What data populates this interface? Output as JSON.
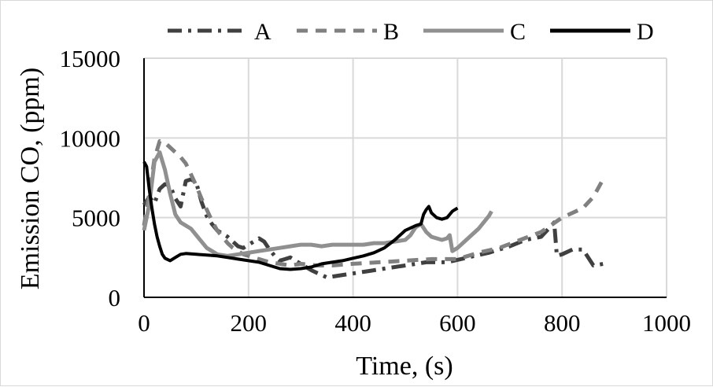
{
  "chart_data": {
    "type": "line",
    "xlabel": "Time, (s)",
    "ylabel": "Emission CO, (ppm)",
    "xlim": [
      0,
      1000
    ],
    "ylim": [
      0,
      15000
    ],
    "xticks": [
      "0",
      "200",
      "400",
      "600",
      "800",
      "1000"
    ],
    "yticks": [
      "0",
      "5000",
      "10000",
      "15000"
    ],
    "grid": true,
    "legend_position": "top",
    "series": [
      {
        "name": "A",
        "color": "#404040",
        "dash": "long-dash-dot",
        "x": [
          0,
          10,
          20,
          30,
          40,
          50,
          60,
          70,
          80,
          90,
          100,
          110,
          120,
          130,
          140,
          150,
          160,
          170,
          180,
          190,
          200,
          210,
          220,
          230,
          240,
          250,
          260,
          270,
          280,
          290,
          300,
          310,
          320,
          330,
          340,
          350,
          360,
          380,
          400,
          430,
          460,
          500,
          540,
          580,
          620,
          660,
          700,
          730,
          760,
          780,
          785,
          790,
          800,
          820,
          840,
          860,
          880
        ],
        "y": [
          5800,
          6300,
          5900,
          6800,
          7100,
          7000,
          6200,
          5700,
          7300,
          7400,
          7200,
          6000,
          5100,
          4600,
          4200,
          4000,
          3800,
          3500,
          3200,
          3100,
          3300,
          3500,
          3700,
          3500,
          3000,
          2600,
          2300,
          2400,
          2500,
          2300,
          2100,
          1900,
          1700,
          1550,
          1400,
          1250,
          1300,
          1400,
          1500,
          1650,
          1800,
          2000,
          2200,
          2200,
          2500,
          2800,
          3200,
          3600,
          3800,
          4500,
          4700,
          2600,
          2700,
          3000,
          3000,
          2000,
          2100
        ]
      },
      {
        "name": "B",
        "color": "#808080",
        "dash": "dashed",
        "x": [
          0,
          10,
          20,
          30,
          40,
          50,
          60,
          70,
          80,
          90,
          100,
          110,
          120,
          130,
          140,
          150,
          160,
          170,
          180,
          190,
          200,
          210,
          220,
          240,
          260,
          280,
          300,
          330,
          360,
          400,
          450,
          500,
          550,
          600,
          640,
          680,
          720,
          760,
          800,
          840,
          860,
          870,
          880
        ],
        "y": [
          4500,
          6500,
          8700,
          9800,
          9700,
          9400,
          9100,
          8800,
          8400,
          7700,
          7000,
          6200,
          5500,
          4800,
          4200,
          3800,
          3400,
          3100,
          2900,
          2700,
          2600,
          2500,
          2400,
          2200,
          2100,
          2000,
          2100,
          2000,
          2000,
          2100,
          2200,
          2300,
          2400,
          2400,
          2800,
          3100,
          3600,
          4100,
          5000,
          5600,
          6300,
          6900,
          7500
        ]
      },
      {
        "name": "C",
        "color": "#909090",
        "dash": "solid",
        "x": [
          0,
          10,
          20,
          30,
          40,
          50,
          60,
          70,
          80,
          90,
          100,
          110,
          120,
          130,
          140,
          160,
          180,
          200,
          220,
          240,
          260,
          280,
          300,
          320,
          340,
          360,
          380,
          400,
          420,
          440,
          460,
          480,
          500,
          510,
          520,
          530,
          540,
          550,
          560,
          570,
          580,
          585,
          590,
          600,
          620,
          640,
          660,
          665
        ],
        "y": [
          4200,
          5800,
          8500,
          9100,
          8000,
          6500,
          5200,
          4700,
          4500,
          4300,
          3900,
          3500,
          3100,
          2900,
          2700,
          2600,
          2700,
          2800,
          2900,
          3000,
          3100,
          3200,
          3300,
          3300,
          3200,
          3300,
          3300,
          3300,
          3300,
          3400,
          3400,
          3500,
          3600,
          3900,
          4400,
          4600,
          4100,
          3800,
          3700,
          3600,
          3700,
          3900,
          2900,
          3100,
          3700,
          4300,
          5100,
          5400
        ]
      },
      {
        "name": "D",
        "color": "#000000",
        "dash": "solid",
        "x": [
          0,
          5,
          10,
          15,
          20,
          25,
          30,
          35,
          40,
          50,
          60,
          70,
          80,
          100,
          120,
          140,
          160,
          180,
          200,
          220,
          240,
          260,
          280,
          300,
          320,
          340,
          360,
          380,
          400,
          420,
          440,
          460,
          480,
          500,
          520,
          530,
          535,
          540,
          545,
          550,
          560,
          570,
          580,
          590,
          600
        ],
        "y": [
          8500,
          8200,
          6800,
          5600,
          4600,
          3800,
          3200,
          2700,
          2450,
          2300,
          2500,
          2700,
          2750,
          2700,
          2650,
          2600,
          2500,
          2400,
          2300,
          2200,
          2000,
          1800,
          1750,
          1800,
          1900,
          2100,
          2200,
          2300,
          2450,
          2600,
          2800,
          3100,
          3600,
          4200,
          4500,
          4600,
          5200,
          5500,
          5700,
          5300,
          5000,
          4900,
          5000,
          5400,
          5600
        ]
      }
    ]
  }
}
